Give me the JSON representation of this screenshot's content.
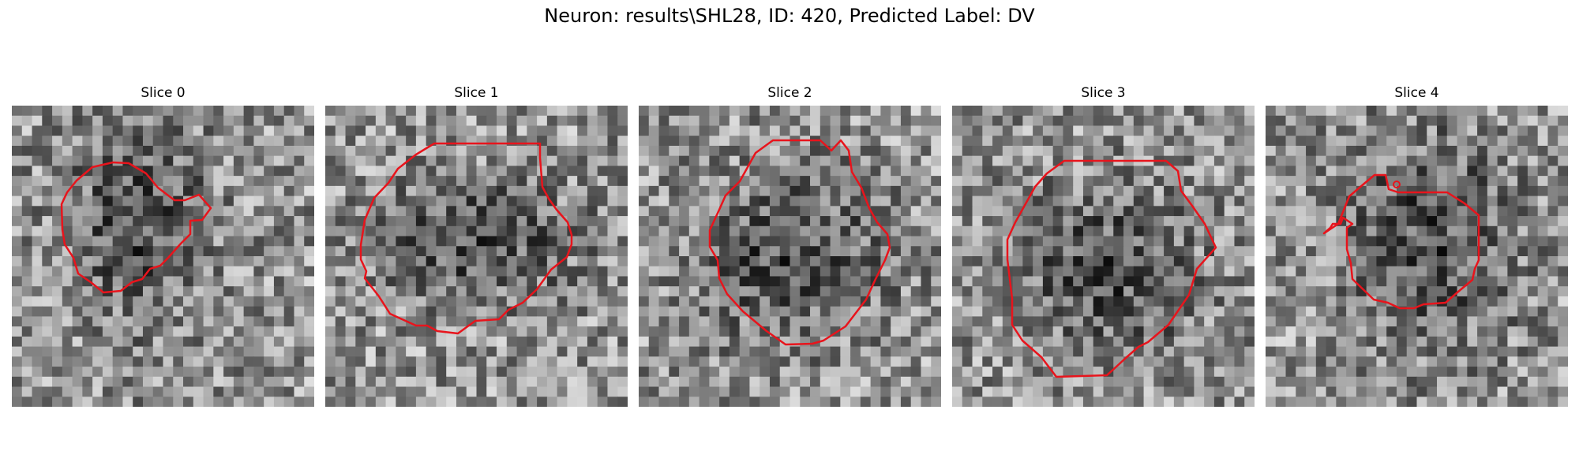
{
  "figure": {
    "title": "Neuron: results\\SHL28, ID: 420, Predicted Label: DV",
    "contour_color": "#e8141c",
    "panels": [
      {
        "title": "Slice 0",
        "seed": 11,
        "blob": [
          0.42,
          0.38,
          0.3,
          0.45
        ]
      },
      {
        "title": "Slice 1",
        "seed": 23,
        "blob": [
          0.5,
          0.45,
          0.42,
          0.25
        ]
      },
      {
        "title": "Slice 2",
        "seed": 37,
        "blob": [
          0.5,
          0.5,
          0.4,
          0.35
        ]
      },
      {
        "title": "Slice 3",
        "seed": 53,
        "blob": [
          0.52,
          0.55,
          0.38,
          0.35
        ]
      },
      {
        "title": "Slice 4",
        "seed": 71,
        "blob": [
          0.55,
          0.45,
          0.35,
          0.45
        ]
      }
    ]
  }
}
